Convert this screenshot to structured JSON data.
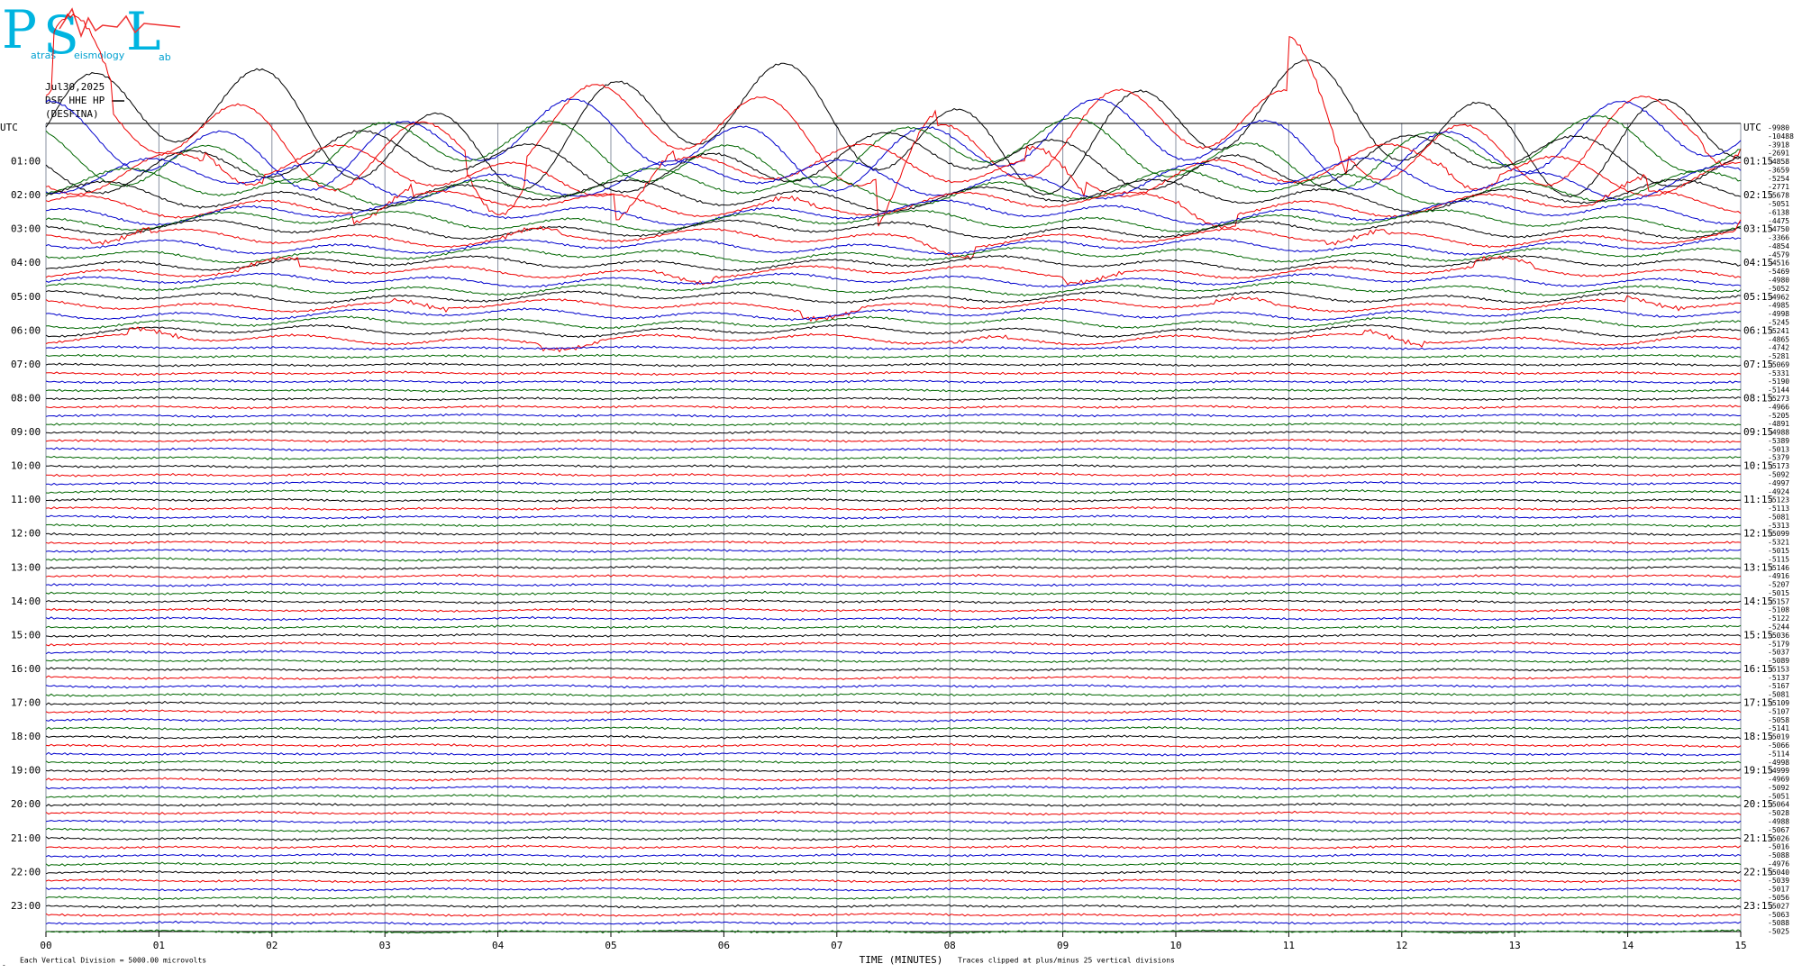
{
  "logo": {
    "letters": [
      "P",
      "S",
      "L"
    ],
    "subtext": [
      "atras",
      "eismology",
      "ab"
    ]
  },
  "header": {
    "date": "Jul30,2025",
    "station": "DSF HHE HP",
    "site": "(DESFINA)"
  },
  "left_labels": [
    "UTC",
    "01:00",
    "02:00",
    "03:00",
    "04:00",
    "05:00",
    "06:00",
    "07:00",
    "08:00",
    "09:00",
    "10:00",
    "11:00",
    "12:00",
    "13:00",
    "14:00",
    "15:00",
    "16:00",
    "17:00",
    "18:00",
    "19:00",
    "20:00",
    "21:00",
    "22:00",
    "23:00"
  ],
  "right_labels": [
    "UTC",
    "01:15",
    "02:15",
    "03:15",
    "04:15",
    "05:15",
    "06:15",
    "07:15",
    "08:15",
    "09:15",
    "10:15",
    "11:15",
    "12:15",
    "13:15",
    "14:15",
    "15:15",
    "16:15",
    "17:15",
    "18:15",
    "19:15",
    "20:15",
    "21:15",
    "22:15",
    "23:15"
  ],
  "trace_offsets": [
    -9980,
    -10488,
    -3918,
    -2691,
    -4858,
    -3659,
    -5254,
    -2771,
    -5678,
    -5051,
    -6138,
    -4475,
    -4750,
    -3366,
    -4854,
    -4579,
    -4516,
    -5469,
    -4980,
    -5052,
    -4962,
    -4985,
    -4998,
    -5245,
    -5241,
    -4865,
    -4742,
    -5281,
    -5069,
    -5331,
    -5190,
    -5144,
    -5273,
    -4966,
    -5205,
    -4891,
    -4988,
    -5389,
    -5013,
    -5379,
    -5173,
    -5092,
    -4997,
    -4924,
    -5123,
    -5113,
    -5081,
    -5313,
    -5099,
    -5321,
    -5015,
    -5115,
    -5146,
    -4916,
    -5207,
    -5015,
    -5157,
    -5108,
    -5122,
    -5244,
    -5036,
    -5179,
    -5037,
    -5089,
    -5153,
    -5137,
    -5167,
    -5081,
    -5109,
    -5107,
    -5058,
    -5141,
    -5019,
    -5066,
    -5114,
    -4998,
    -4999,
    -4969,
    -5092,
    -5051,
    -5064,
    -5028,
    -4988,
    -5067,
    -5026,
    -5016,
    -5088,
    -4976,
    -5040,
    -5039,
    -5017,
    -5056,
    -5027,
    -5063,
    -5088,
    -5025
  ],
  "x_ticks": [
    "00",
    "01",
    "02",
    "03",
    "04",
    "05",
    "06",
    "07",
    "08",
    "09",
    "10",
    "11",
    "12",
    "13",
    "14",
    "15"
  ],
  "footer": {
    "scale": "Each Vertical Division = 5000.00 microvolts",
    "axis_title": "TIME (MINUTES)",
    "clip_note": "Traces clipped at plus/minus 25 vertical divisions"
  }
}
